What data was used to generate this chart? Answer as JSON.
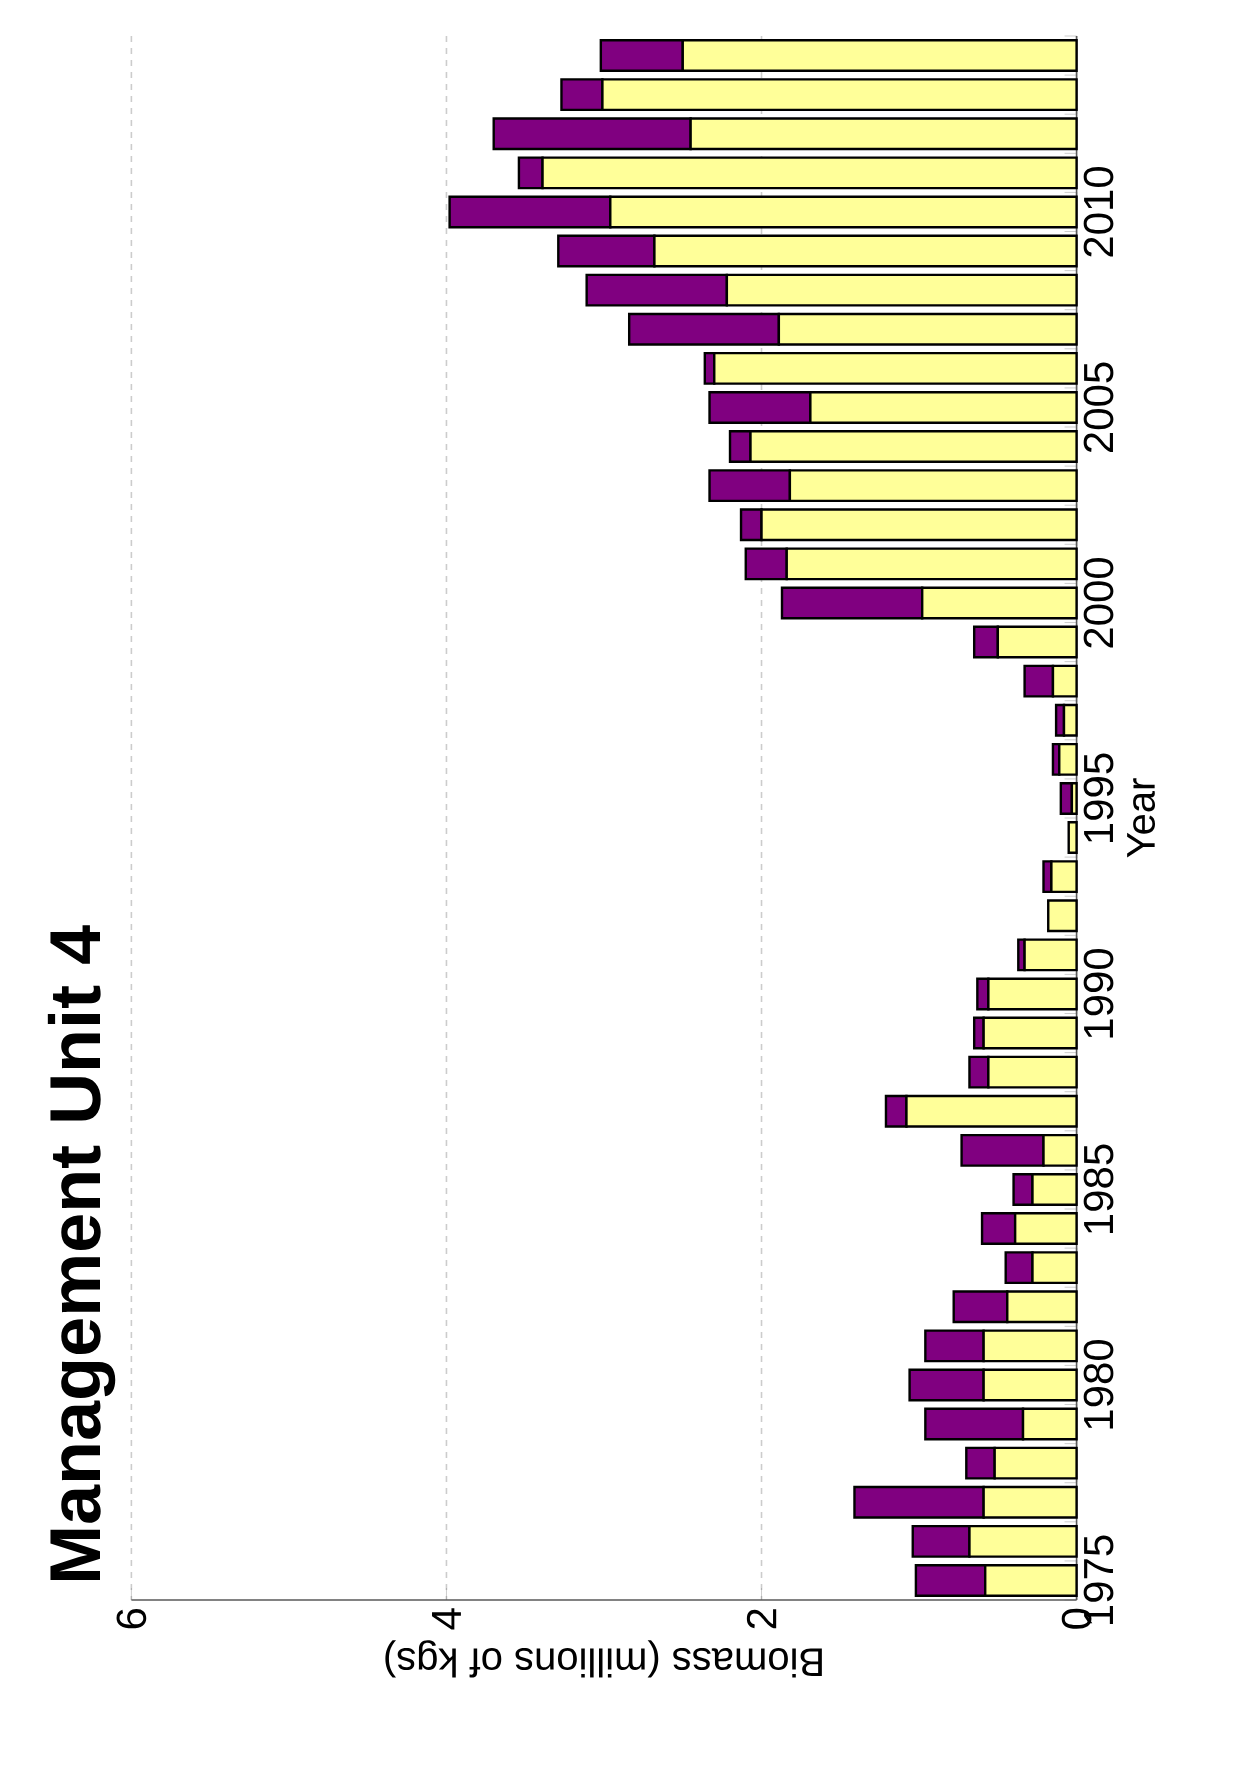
{
  "chart_data": {
    "type": "bar",
    "orientation": "horizontal",
    "title": "Management Unit 4",
    "xlabel": "Biomass (millions of kgs)",
    "ylabel": "Year",
    "categories": [
      null,
      null,
      null,
      null,
      "2010",
      null,
      null,
      null,
      null,
      "2005",
      null,
      null,
      null,
      null,
      "2000",
      null,
      null,
      null,
      null,
      "1995",
      null,
      null,
      null,
      null,
      "1990",
      null,
      null,
      null,
      null,
      "1985",
      null,
      null,
      null,
      null,
      "1980",
      null,
      null,
      null,
      null,
      "1975"
    ],
    "stacked": true,
    "series": [
      {
        "color": "#ffff99",
        "values": [
          2.5,
          3.01,
          2.45,
          3.39,
          2.96,
          2.68,
          2.22,
          1.89,
          2.3,
          1.69,
          2.07,
          1.82,
          2.0,
          1.84,
          0.98,
          0.5,
          0.15,
          0.08,
          0.11,
          0.03,
          0.05,
          0.16,
          0.18,
          0.33,
          0.56,
          0.59,
          0.56,
          1.08,
          0.21,
          0.28,
          0.39,
          0.28,
          0.44,
          0.59,
          0.59,
          0.34,
          0.52,
          0.59,
          0.68,
          0.58
        ]
      },
      {
        "color": "#800080",
        "values": [
          0.52,
          0.26,
          1.25,
          0.15,
          1.02,
          0.61,
          0.89,
          0.95,
          0.06,
          0.64,
          0.13,
          0.51,
          0.13,
          0.26,
          0.89,
          0.15,
          0.18,
          0.05,
          0.04,
          0.07,
          0,
          0.05,
          0,
          0.04,
          0.07,
          0.06,
          0.12,
          0.13,
          0.52,
          0.12,
          0.21,
          0.17,
          0.34,
          0.37,
          0.47,
          0.62,
          0.18,
          0.82,
          0.36,
          0.44
        ]
      }
    ],
    "xlim": [
      6,
      0
    ],
    "xticks": [
      6,
      4,
      2,
      0
    ],
    "grid": "x"
  }
}
